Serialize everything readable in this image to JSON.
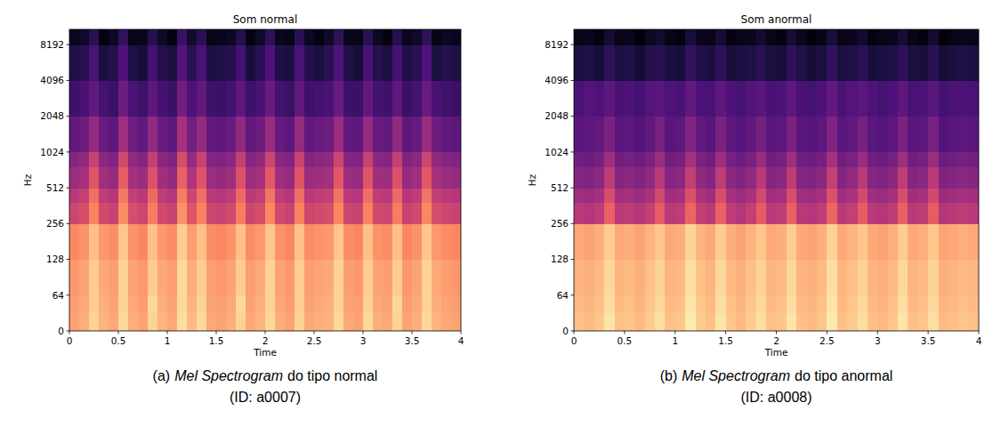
{
  "chart_data": [
    {
      "type": "heatmap",
      "title": "Som normal",
      "x_label": "Time",
      "y_label": "Hz",
      "caption": [
        "(a)",
        "Mel Spectrogram",
        "do tipo normal"
      ],
      "caption_id": "(ID: a0007)",
      "xlim": [
        0,
        4
      ],
      "xticks": [
        0,
        0.5,
        1,
        1.5,
        2,
        2.5,
        3,
        3.5,
        4
      ],
      "ylim": [
        0,
        11025
      ],
      "yticks": [
        0,
        64,
        128,
        256,
        512,
        1024,
        2048,
        4096,
        8192
      ],
      "log": "y",
      "grid": false,
      "zlim": [
        -80,
        0
      ],
      "x_edges": [
        0,
        0.1,
        0.2,
        0.3,
        0.4,
        0.5,
        0.6,
        0.7,
        0.8,
        0.9,
        1,
        1.1,
        1.2,
        1.3,
        1.4,
        1.5,
        1.6,
        1.7,
        1.8,
        1.9,
        2,
        2.1,
        2.2,
        2.3,
        2.4,
        2.5,
        2.6,
        2.7,
        2.8,
        2.9,
        3,
        3.1,
        3.2,
        3.3,
        3.4,
        3.5,
        3.6,
        3.7,
        3.8,
        3.9,
        4
      ],
      "y_edges": [
        0,
        32,
        64,
        128,
        256,
        384,
        512,
        768,
        1024,
        2048,
        4096,
        8192,
        11025
      ],
      "values": [
        [
          -15,
          -13,
          -7,
          -12,
          -14,
          -6,
          -13,
          -15,
          -7,
          -12,
          -14,
          -5,
          -11,
          -6,
          -14,
          -15,
          -13,
          -7,
          -14,
          -12,
          -6,
          -13,
          -15,
          -7,
          -14,
          -13,
          -12,
          -6,
          -14,
          -15,
          -6,
          -13,
          -14,
          -7,
          -15,
          -13,
          -6,
          -12,
          -14,
          -15
        ],
        [
          -16,
          -14,
          -8,
          -13,
          -15,
          -7,
          -14,
          -16,
          -6,
          -13,
          -15,
          -6,
          -12,
          -7,
          -15,
          -16,
          -14,
          -6,
          -15,
          -13,
          -7,
          -14,
          -16,
          -8,
          -15,
          -14,
          -13,
          -7,
          -15,
          -16,
          -7,
          -14,
          -15,
          -6,
          -16,
          -14,
          -7,
          -13,
          -15,
          -16
        ],
        [
          -17,
          -15,
          -8,
          -14,
          -16,
          -7,
          -15,
          -17,
          -8,
          -14,
          -16,
          -6,
          -13,
          -8,
          -16,
          -17,
          -15,
          -8,
          -16,
          -14,
          -7,
          -15,
          -17,
          -8,
          -16,
          -15,
          -14,
          -7,
          -16,
          -17,
          -8,
          -15,
          -16,
          -8,
          -17,
          -15,
          -7,
          -14,
          -16,
          -17
        ],
        [
          -20,
          -18,
          -10,
          -17,
          -19,
          -9,
          -18,
          -20,
          -10,
          -17,
          -19,
          -8,
          -16,
          -10,
          -19,
          -20,
          -18,
          -10,
          -19,
          -17,
          -9,
          -18,
          -20,
          -10,
          -19,
          -18,
          -17,
          -9,
          -19,
          -20,
          -10,
          -18,
          -19,
          -10,
          -20,
          -18,
          -9,
          -17,
          -19,
          -20
        ],
        [
          -35,
          -33,
          -21,
          -34,
          -36,
          -19,
          -33,
          -35,
          -22,
          -34,
          -36,
          -18,
          -31,
          -21,
          -35,
          -36,
          -34,
          -22,
          -35,
          -33,
          -20,
          -34,
          -36,
          -21,
          -35,
          -34,
          -33,
          -20,
          -35,
          -36,
          -21,
          -34,
          -35,
          -22,
          -36,
          -34,
          -20,
          -33,
          -35,
          -36
        ],
        [
          -39,
          -37,
          -25,
          -38,
          -40,
          -23,
          -37,
          -39,
          -26,
          -38,
          -40,
          -22,
          -35,
          -25,
          -39,
          -40,
          -38,
          -26,
          -39,
          -37,
          -24,
          -38,
          -40,
          -25,
          -39,
          -38,
          -37,
          -24,
          -39,
          -40,
          -25,
          -38,
          -39,
          -26,
          -40,
          -38,
          -24,
          -37,
          -39,
          -40
        ],
        [
          -45,
          -43,
          -31,
          -44,
          -46,
          -29,
          -43,
          -45,
          -32,
          -44,
          -46,
          -28,
          -41,
          -31,
          -45,
          -46,
          -44,
          -32,
          -45,
          -43,
          -30,
          -44,
          -46,
          -31,
          -45,
          -44,
          -43,
          -30,
          -45,
          -46,
          -31,
          -44,
          -45,
          -32,
          -46,
          -44,
          -30,
          -43,
          -45,
          -46
        ],
        [
          -49,
          -47,
          -36,
          -48,
          -50,
          -34,
          -47,
          -49,
          -37,
          -48,
          -50,
          -33,
          -46,
          -36,
          -49,
          -50,
          -48,
          -37,
          -49,
          -47,
          -35,
          -48,
          -50,
          -36,
          -49,
          -48,
          -47,
          -35,
          -49,
          -50,
          -36,
          -48,
          -49,
          -37,
          -50,
          -48,
          -35,
          -47,
          -49,
          -50
        ],
        [
          -56,
          -54,
          -46,
          -55,
          -57,
          -44,
          -54,
          -56,
          -47,
          -55,
          -57,
          -43,
          -53,
          -46,
          -56,
          -57,
          -55,
          -47,
          -56,
          -54,
          -45,
          -55,
          -57,
          -46,
          -56,
          -55,
          -54,
          -45,
          -56,
          -57,
          -46,
          -55,
          -56,
          -47,
          -57,
          -55,
          -45,
          -54,
          -56,
          -57
        ],
        [
          -63,
          -61,
          -56,
          -62,
          -64,
          -54,
          -61,
          -63,
          -57,
          -62,
          -64,
          -53,
          -60,
          -56,
          -63,
          -64,
          -62,
          -57,
          -63,
          -61,
          -55,
          -62,
          -64,
          -56,
          -63,
          -62,
          -61,
          -55,
          -63,
          -64,
          -56,
          -62,
          -63,
          -57,
          -64,
          -62,
          -55,
          -61,
          -63,
          -64
        ],
        [
          -69,
          -67,
          -61,
          -70,
          -68,
          -60,
          -69,
          -71,
          -62,
          -68,
          -70,
          -59,
          -67,
          -61,
          -70,
          -69,
          -68,
          -62,
          -71,
          -67,
          -60,
          -69,
          -70,
          -61,
          -68,
          -70,
          -67,
          -60,
          -69,
          -71,
          -61,
          -68,
          -70,
          -62,
          -69,
          -67,
          -60,
          -70,
          -68,
          -69
        ],
        [
          -76,
          -74,
          -67,
          -78,
          -75,
          -65,
          -77,
          -76,
          -68,
          -74,
          -78,
          -64,
          -73,
          -67,
          -77,
          -76,
          -75,
          -68,
          -78,
          -74,
          -66,
          -76,
          -77,
          -67,
          -75,
          -78,
          -74,
          -66,
          -76,
          -77,
          -67,
          -75,
          -78,
          -68,
          -76,
          -74,
          -66,
          -77,
          -75,
          -76
        ]
      ]
    },
    {
      "type": "heatmap",
      "title": "Som anormal",
      "x_label": "Time",
      "y_label": "Hz",
      "caption": [
        "(b)",
        "Mel Spectrogram",
        "do tipo anormal"
      ],
      "caption_id": "(ID: a0008)",
      "xlim": [
        0,
        4
      ],
      "xticks": [
        0,
        0.5,
        1,
        1.5,
        2,
        2.5,
        3,
        3.5,
        4
      ],
      "ylim": [
        0,
        11025
      ],
      "yticks": [
        0,
        64,
        128,
        256,
        512,
        1024,
        2048,
        4096,
        8192
      ],
      "log": "y",
      "grid": false,
      "zlim": [
        -80,
        0
      ],
      "x_edges": [
        0,
        0.1,
        0.2,
        0.3,
        0.4,
        0.5,
        0.6,
        0.7,
        0.8,
        0.9,
        1,
        1.1,
        1.2,
        1.3,
        1.4,
        1.5,
        1.6,
        1.7,
        1.8,
        1.9,
        2,
        2.1,
        2.2,
        2.3,
        2.4,
        2.5,
        2.6,
        2.7,
        2.8,
        2.9,
        3,
        3.1,
        3.2,
        3.3,
        3.4,
        3.5,
        3.6,
        3.7,
        3.8,
        3.9,
        4
      ],
      "y_edges": [
        0,
        32,
        64,
        128,
        256,
        384,
        512,
        768,
        1024,
        2048,
        4096,
        8192,
        11025
      ],
      "values": [
        [
          -10,
          -11,
          -9,
          -4,
          -10,
          -9,
          -11,
          -8,
          -5,
          -10,
          -9,
          -3,
          -8,
          -10,
          -4,
          -9,
          -11,
          -8,
          -5,
          -10,
          -9,
          -4,
          -10,
          -11,
          -9,
          -3,
          -10,
          -8,
          -5,
          -10,
          -11,
          -9,
          -4,
          -10,
          -9,
          -5,
          -11,
          -10,
          -9,
          -10
        ],
        [
          -11,
          -12,
          -10,
          -5,
          -11,
          -10,
          -12,
          -9,
          -6,
          -11,
          -10,
          -4,
          -9,
          -11,
          -5,
          -10,
          -12,
          -9,
          -6,
          -11,
          -10,
          -5,
          -11,
          -12,
          -10,
          -4,
          -11,
          -9,
          -6,
          -11,
          -12,
          -10,
          -5,
          -11,
          -10,
          -6,
          -12,
          -11,
          -10,
          -11
        ],
        [
          -12,
          -13,
          -11,
          -6,
          -12,
          -11,
          -13,
          -10,
          -7,
          -12,
          -11,
          -5,
          -10,
          -12,
          -6,
          -11,
          -13,
          -10,
          -7,
          -12,
          -11,
          -6,
          -12,
          -13,
          -11,
          -5,
          -12,
          -10,
          -7,
          -12,
          -13,
          -11,
          -6,
          -12,
          -11,
          -7,
          -13,
          -12,
          -11,
          -12
        ],
        [
          -14,
          -15,
          -13,
          -8,
          -14,
          -13,
          -15,
          -12,
          -9,
          -14,
          -13,
          -7,
          -12,
          -14,
          -8,
          -13,
          -15,
          -12,
          -9,
          -14,
          -13,
          -8,
          -14,
          -15,
          -13,
          -7,
          -14,
          -12,
          -9,
          -14,
          -15,
          -13,
          -8,
          -14,
          -13,
          -9,
          -15,
          -14,
          -13,
          -14
        ],
        [
          -39,
          -40,
          -38,
          -28,
          -39,
          -38,
          -40,
          -37,
          -29,
          -39,
          -38,
          -27,
          -37,
          -39,
          -28,
          -38,
          -40,
          -37,
          -29,
          -39,
          -38,
          -28,
          -39,
          -40,
          -38,
          -27,
          -39,
          -37,
          -29,
          -39,
          -40,
          -38,
          -28,
          -39,
          -38,
          -29,
          -40,
          -39,
          -38,
          -39
        ],
        [
          -44,
          -45,
          -43,
          -33,
          -44,
          -43,
          -45,
          -42,
          -34,
          -44,
          -43,
          -32,
          -42,
          -44,
          -33,
          -43,
          -45,
          -42,
          -34,
          -44,
          -43,
          -33,
          -44,
          -45,
          -43,
          -32,
          -44,
          -42,
          -34,
          -44,
          -45,
          -43,
          -33,
          -44,
          -43,
          -34,
          -45,
          -44,
          -43,
          -44
        ],
        [
          -49,
          -50,
          -48,
          -38,
          -49,
          -48,
          -50,
          -47,
          -39,
          -49,
          -48,
          -37,
          -47,
          -49,
          -38,
          -48,
          -50,
          -47,
          -39,
          -49,
          -48,
          -38,
          -49,
          -50,
          -48,
          -37,
          -49,
          -47,
          -39,
          -49,
          -50,
          -48,
          -38,
          -49,
          -48,
          -39,
          -50,
          -49,
          -48,
          -49
        ],
        [
          -53,
          -54,
          -52,
          -44,
          -53,
          -52,
          -54,
          -51,
          -45,
          -53,
          -52,
          -43,
          -51,
          -53,
          -44,
          -52,
          -54,
          -51,
          -45,
          -53,
          -52,
          -44,
          -53,
          -54,
          -52,
          -43,
          -53,
          -51,
          -45,
          -53,
          -54,
          -52,
          -44,
          -53,
          -52,
          -45,
          -54,
          -53,
          -52,
          -53
        ],
        [
          -58,
          -57,
          -56,
          -51,
          -58,
          -57,
          -59,
          -56,
          -52,
          -58,
          -57,
          -50,
          -56,
          -58,
          -51,
          -57,
          -59,
          -56,
          -52,
          -58,
          -57,
          -51,
          -58,
          -59,
          -57,
          -50,
          -58,
          -56,
          -52,
          -58,
          -59,
          -57,
          -51,
          -58,
          -57,
          -52,
          -59,
          -58,
          -57,
          -58
        ],
        [
          -61,
          -59,
          -60,
          -57,
          -61,
          -60,
          -62,
          -59,
          -58,
          -60,
          -61,
          -56,
          -60,
          -61,
          -57,
          -60,
          -62,
          -59,
          -58,
          -61,
          -60,
          -57,
          -61,
          -62,
          -60,
          -56,
          -61,
          -59,
          -58,
          -60,
          -62,
          -60,
          -57,
          -61,
          -60,
          -58,
          -62,
          -61,
          -60,
          -61
        ],
        [
          -70,
          -69,
          -71,
          -66,
          -70,
          -69,
          -72,
          -68,
          -67,
          -70,
          -71,
          -65,
          -69,
          -70,
          -66,
          -71,
          -70,
          -69,
          -67,
          -70,
          -71,
          -66,
          -69,
          -72,
          -70,
          -65,
          -70,
          -69,
          -67,
          -71,
          -70,
          -69,
          -66,
          -70,
          -71,
          -67,
          -72,
          -70,
          -69,
          -70
        ],
        [
          -77,
          -76,
          -78,
          -72,
          -77,
          -76,
          -79,
          -75,
          -73,
          -77,
          -78,
          -71,
          -76,
          -77,
          -72,
          -78,
          -77,
          -76,
          -73,
          -77,
          -78,
          -72,
          -76,
          -79,
          -77,
          -71,
          -77,
          -76,
          -73,
          -78,
          -77,
          -76,
          -72,
          -77,
          -78,
          -73,
          -79,
          -77,
          -76,
          -77
        ]
      ]
    }
  ]
}
